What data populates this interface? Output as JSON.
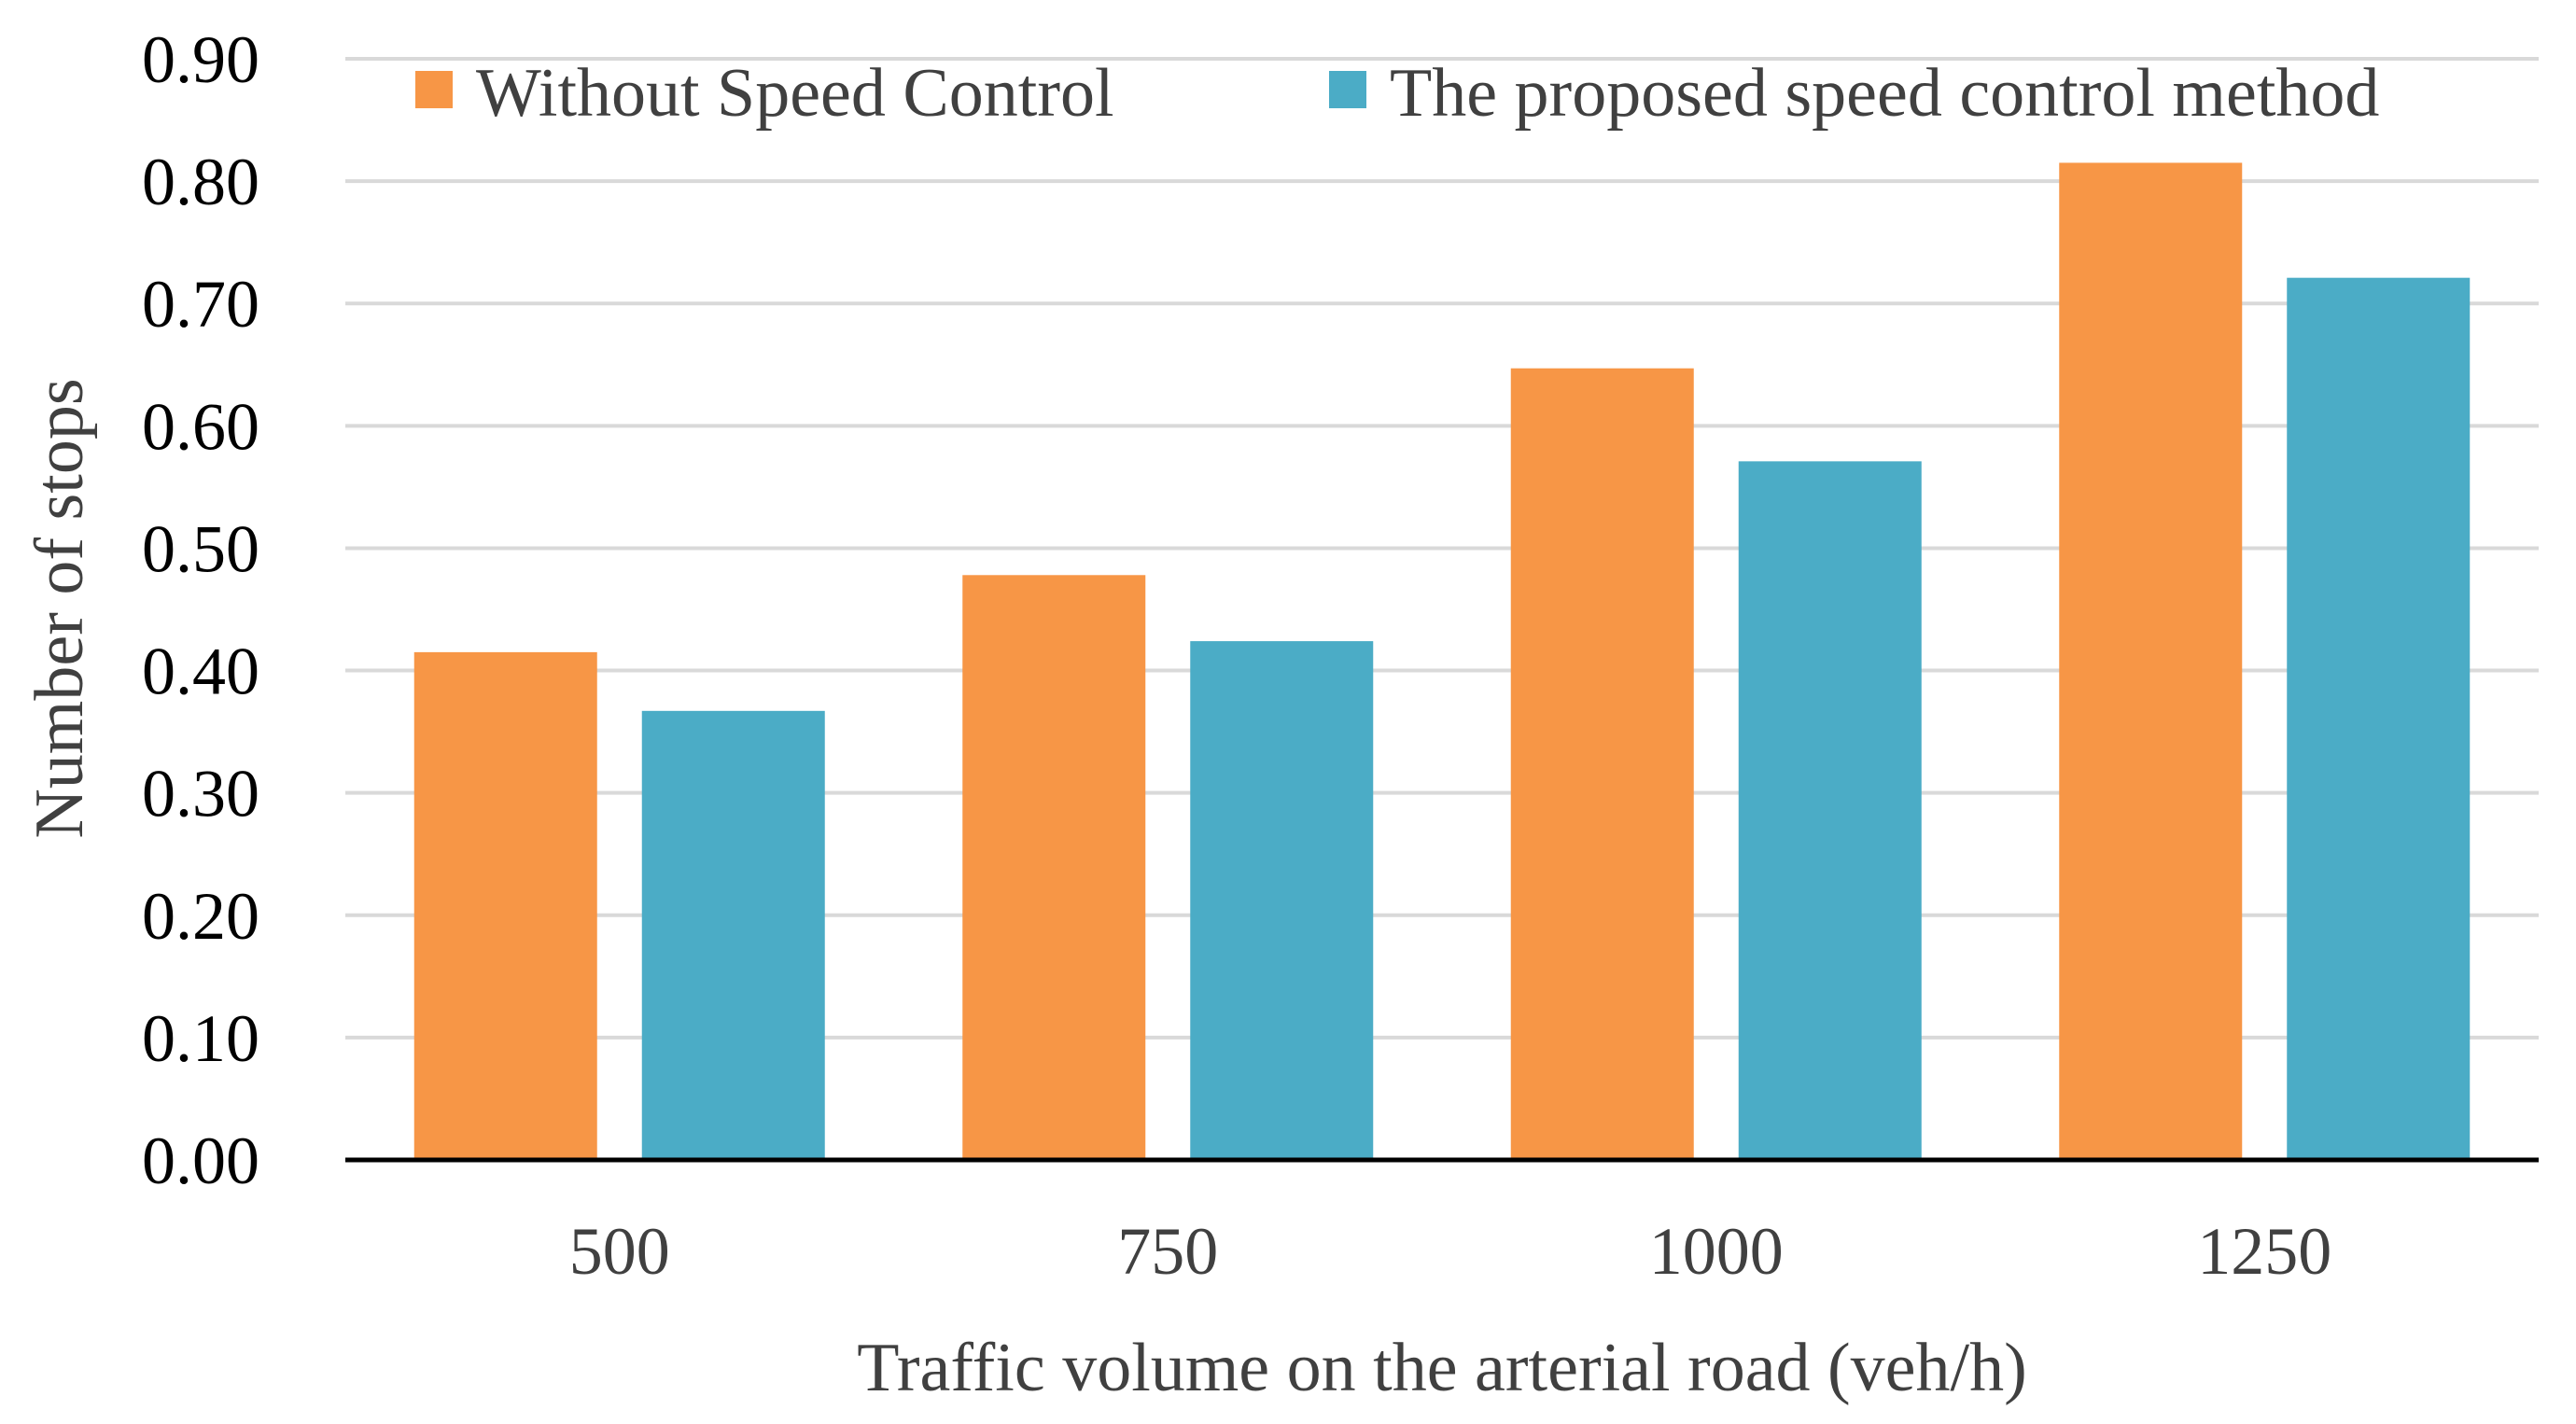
{
  "chart_data": {
    "type": "bar",
    "title": "",
    "xlabel": "Traffic volume on the arterial road (veh/h)",
    "ylabel": "Number of stops",
    "categories": [
      "500",
      "750",
      "1000",
      "1250"
    ],
    "ylim": [
      0,
      0.9
    ],
    "yticks": [
      "0.00",
      "0.10",
      "0.20",
      "0.30",
      "0.40",
      "0.50",
      "0.60",
      "0.70",
      "0.80",
      "0.90"
    ],
    "grid": true,
    "legend_position": "top",
    "series": [
      {
        "name": "Without Speed Control",
        "color": "#F79646",
        "values": [
          0.415,
          0.478,
          0.647,
          0.815
        ]
      },
      {
        "name": "The proposed speed control method",
        "color": "#4BACC6",
        "values": [
          0.367,
          0.424,
          0.571,
          0.721
        ]
      }
    ]
  }
}
